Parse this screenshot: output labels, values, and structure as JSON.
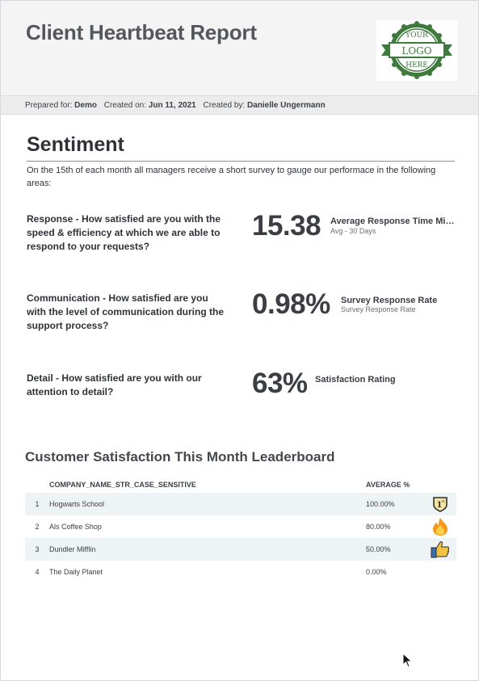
{
  "header": {
    "title": "Client Heartbeat Report",
    "logo": {
      "top_text": "YOUR",
      "middle_text": "LOGO",
      "bottom_text": "HERE",
      "color": "#3f7a3d"
    }
  },
  "meta": {
    "prepared_for_label": "Prepared for:",
    "prepared_for_value": "Demo",
    "created_on_label": "Created on:",
    "created_on_value": "Jun 11, 2021",
    "created_by_label": "Created by:",
    "created_by_value": "Danielle Ungermann"
  },
  "sentiment": {
    "title": "Sentiment",
    "intro": "On the 15th of each month all managers receive a short survey to gauge our performace in the following areas:",
    "items": [
      {
        "question": "Response - How satisfied are you with the speed & efficiency at which we are able to respond to your requests?",
        "value": "15.38",
        "label": "Average Response Time Minutes",
        "sublabel": "Avg - 30 Days"
      },
      {
        "question": "Communication - How satisfied are you with the level of communication during the support process?",
        "value": "0.98%",
        "label": "Survey Response Rate",
        "sublabel": "Survey Response Rate"
      },
      {
        "question": "Detail - How satisfied are you with our attention to detail?",
        "value": "63%",
        "label": "Satisfaction Rating",
        "sublabel": ""
      }
    ]
  },
  "leaderboard": {
    "title": "Customer Satisfaction This Month Leaderboard",
    "columns": [
      "COMPANY_NAME_STR_CASE_SENSITIVE",
      "AVERAGE %"
    ],
    "rows": [
      {
        "rank": "1",
        "company": "Hogwarts School",
        "average": "100.00%",
        "icon": "first-place-badge-icon"
      },
      {
        "rank": "2",
        "company": "Als Coffee Shop",
        "average": "80.00%",
        "icon": "flame-icon"
      },
      {
        "rank": "3",
        "company": "Dundler Mifflin",
        "average": "50.00%",
        "icon": "thumbs-up-icon"
      },
      {
        "rank": "4",
        "company": "The Daily Planet",
        "average": "0.00%",
        "icon": ""
      }
    ]
  }
}
